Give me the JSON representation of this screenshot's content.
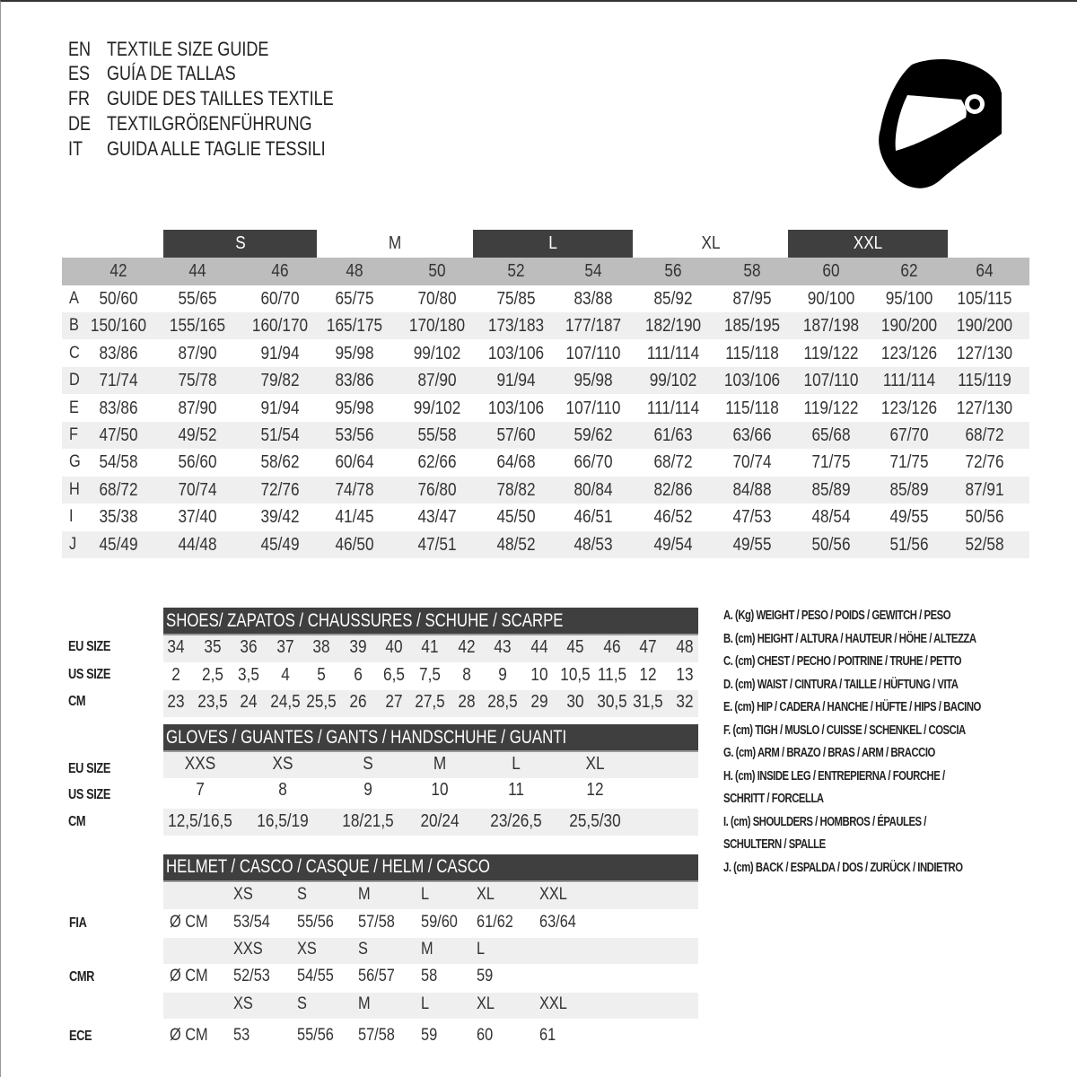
{
  "titles": [
    {
      "code": "EN",
      "text": "TEXTILE SIZE GUIDE"
    },
    {
      "code": "ES",
      "text": "GUÍA DE TALLAS"
    },
    {
      "code": "FR",
      "text": "GUIDE DES TAILLES TEXTILE"
    },
    {
      "code": "DE",
      "text": "TEXTILGRÖßENFÜHRUNG"
    },
    {
      "code": "IT",
      "text": "GUIDA ALLE TAGLIE TESSILI"
    }
  ],
  "logo_icon": "helmet-icon",
  "textile": {
    "size_groups": [
      "S",
      "M",
      "L",
      "XL",
      "XXL"
    ],
    "eu_sizes": [
      "42",
      "44",
      "46",
      "48",
      "50",
      "52",
      "54",
      "56",
      "58",
      "60",
      "62",
      "64"
    ],
    "rows": [
      {
        "label": "A",
        "values": [
          "50/60",
          "55/65",
          "60/70",
          "65/75",
          "70/80",
          "75/85",
          "83/88",
          "85/92",
          "87/95",
          "90/100",
          "95/100",
          "105/115"
        ]
      },
      {
        "label": "B",
        "values": [
          "150/160",
          "155/165",
          "160/170",
          "165/175",
          "170/180",
          "173/183",
          "177/187",
          "182/190",
          "185/195",
          "187/198",
          "190/200",
          "190/200"
        ]
      },
      {
        "label": "C",
        "values": [
          "83/86",
          "87/90",
          "91/94",
          "95/98",
          "99/102",
          "103/106",
          "107/110",
          "111/114",
          "115/118",
          "119/122",
          "123/126",
          "127/130"
        ]
      },
      {
        "label": "D",
        "values": [
          "71/74",
          "75/78",
          "79/82",
          "83/86",
          "87/90",
          "91/94",
          "95/98",
          "99/102",
          "103/106",
          "107/110",
          "111/114",
          "115/119"
        ]
      },
      {
        "label": "E",
        "values": [
          "83/86",
          "87/90",
          "91/94",
          "95/98",
          "99/102",
          "103/106",
          "107/110",
          "111/114",
          "115/118",
          "119/122",
          "123/126",
          "127/130"
        ]
      },
      {
        "label": "F",
        "values": [
          "47/50",
          "49/52",
          "51/54",
          "53/56",
          "55/58",
          "57/60",
          "59/62",
          "61/63",
          "63/66",
          "65/68",
          "67/70",
          "68/72"
        ]
      },
      {
        "label": "G",
        "values": [
          "54/58",
          "56/60",
          "58/62",
          "60/64",
          "62/66",
          "64/68",
          "66/70",
          "68/72",
          "70/74",
          "71/75",
          "71/75",
          "72/76"
        ]
      },
      {
        "label": "H",
        "values": [
          "68/72",
          "70/74",
          "72/76",
          "74/78",
          "76/80",
          "78/82",
          "80/84",
          "82/86",
          "84/88",
          "85/89",
          "85/89",
          "87/91"
        ]
      },
      {
        "label": "I",
        "values": [
          "35/38",
          "37/40",
          "39/42",
          "41/45",
          "43/47",
          "45/50",
          "46/51",
          "46/52",
          "47/53",
          "48/54",
          "49/55",
          "50/56"
        ]
      },
      {
        "label": "J",
        "values": [
          "45/49",
          "44/48",
          "45/49",
          "46/50",
          "47/51",
          "48/52",
          "48/53",
          "49/54",
          "49/55",
          "50/56",
          "51/56",
          "52/58"
        ]
      }
    ]
  },
  "shoes": {
    "title": "SHOES/ ZAPATOS / CHAUSSURES / SCHUHE / SCARPE",
    "rows": [
      {
        "label": "EU SIZE",
        "values": [
          "34",
          "35",
          "36",
          "37",
          "38",
          "39",
          "40",
          "41",
          "42",
          "43",
          "44",
          "45",
          "46",
          "47",
          "48"
        ]
      },
      {
        "label": "US SIZE",
        "values": [
          "2",
          "2,5",
          "3,5",
          "4",
          "5",
          "6",
          "6,5",
          "7,5",
          "8",
          "9",
          "10",
          "10,5",
          "11,5",
          "12",
          "13"
        ]
      },
      {
        "label": "CM",
        "values": [
          "23",
          "23,5",
          "24",
          "24,5",
          "25,5",
          "26",
          "27",
          "27,5",
          "28",
          "28,5",
          "29",
          "30",
          "30,5",
          "31,5",
          "32"
        ]
      }
    ]
  },
  "gloves": {
    "title": "GLOVES / GUANTES / GANTS / HANDSCHUHE / GUANTI",
    "rows": [
      {
        "label": "EU SIZE",
        "values": [
          "XXS",
          "XS",
          "S",
          "M",
          "L",
          "XL"
        ]
      },
      {
        "label": "US SIZE",
        "values": [
          "7",
          "8",
          "9",
          "10",
          "11",
          "12"
        ]
      },
      {
        "label": "CM",
        "values": [
          "12,5/16,5",
          "16,5/19",
          "18/21,5",
          "20/24",
          "23/26,5",
          "25,5/30"
        ]
      }
    ]
  },
  "helmet": {
    "title": "HELMET / CASCO / CASQUE / HELM / CASCO",
    "unit": "Ø CM",
    "standards": [
      {
        "label": "FIA",
        "sizes": [
          "XS",
          "S",
          "M",
          "L",
          "XL",
          "XXL"
        ],
        "values": [
          "53/54",
          "55/56",
          "57/58",
          "59/60",
          "61/62",
          "63/64"
        ]
      },
      {
        "label": "CMR",
        "sizes": [
          "XXS",
          "XS",
          "S",
          "M",
          "L"
        ],
        "values": [
          "52/53",
          "54/55",
          "56/57",
          "58",
          "59"
        ]
      },
      {
        "label": "ECE",
        "sizes": [
          "XS",
          "S",
          "M",
          "L",
          "XL",
          "XXL"
        ],
        "values": [
          "53",
          "55/56",
          "57/58",
          "59",
          "60",
          "61"
        ]
      }
    ]
  },
  "legend": [
    "A. (Kg) WEIGHT / PESO / POIDS / GEWITCH / PESO",
    "B. (cm) HEIGHT / ALTURA / HAUTEUR / HÖHE / ALTEZZA",
    "C. (cm) CHEST / PECHO / POITRINE / TRUHE / PETTO",
    "D. (cm) WAIST / CINTURA / TAILLE / HÜFTUNG / VITA",
    "E. (cm) HIP / CADERA / HANCHE / HÜFTE / HIPS /  BACINO",
    "F.  (cm) TIGH / MUSLO / CUISSE / SCHENKEL / COSCIA",
    "G. (cm) ARM  / BRAZO / BRAS / ARM / BRACCIO",
    "H. (cm) INSIDE LEG / ENTREPIERNA / FOURCHE /",
    "SCHRITT / FORCELLA",
    "I.  (cm) SHOULDERS / HOMBROS / ÉPAULES /",
    "SCHULTERN / SPALLE",
    "J. (cm) BACK / ESPALDA / DOS / ZURÜCK / INDIETRO"
  ]
}
